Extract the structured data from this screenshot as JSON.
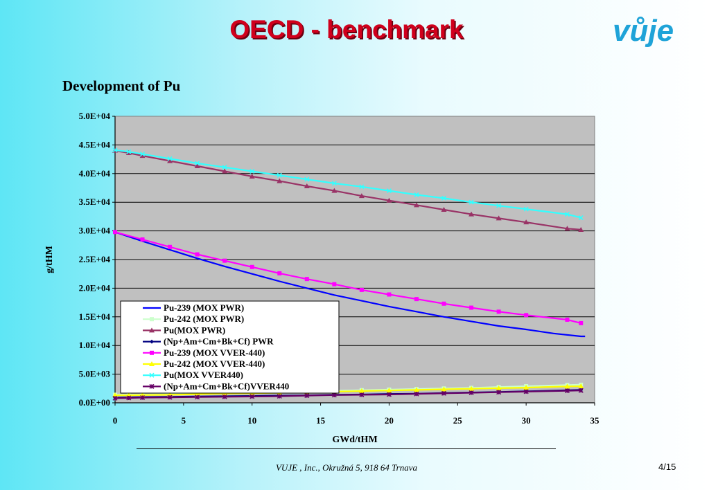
{
  "slide": {
    "title": "OECD - benchmark",
    "logo": "vůje",
    "footer": "VUJE , Inc., Okružná 5, 918 64 Trnava",
    "page": "4/15"
  },
  "chart_data": {
    "type": "line",
    "title": "Development of Pu",
    "xlabel": "GWd/tHM",
    "ylabel": "g/tHM",
    "xlim": [
      0,
      35
    ],
    "ylim": [
      0,
      50000
    ],
    "xticks": [
      "0",
      "5",
      "10",
      "15",
      "20",
      "25",
      "30",
      "35"
    ],
    "yticks": [
      "0.0E+00",
      "5.0E+03",
      "1.0E+04",
      "1.5E+04",
      "2.0E+04",
      "2.5E+04",
      "3.0E+04",
      "3.5E+04",
      "4.0E+04",
      "4.5E+04",
      "5.0E+04"
    ],
    "grid": "horizontal",
    "background": "#c0c0c0",
    "legend_position": "bottom-left",
    "series": [
      {
        "name": "Pu-239 (MOX PWR)",
        "color": "#0000ff",
        "marker": "none",
        "x": [
          0,
          2,
          4,
          6,
          8,
          10,
          12,
          14,
          16,
          18,
          20,
          22,
          24,
          26,
          28,
          30,
          32,
          34,
          34.3
        ],
        "y": [
          29800,
          28200,
          26700,
          25200,
          23800,
          22500,
          21200,
          20000,
          18800,
          17800,
          16800,
          15900,
          15000,
          14200,
          13400,
          12800,
          12100,
          11600,
          11600
        ]
      },
      {
        "name": "Pu-242 (MOX PWR)",
        "color": "#ccffcc",
        "marker": "square",
        "x": [
          0,
          1,
          2,
          4,
          6,
          8,
          10,
          12,
          14,
          16,
          18,
          20,
          22,
          24,
          26,
          28,
          30,
          33,
          34
        ],
        "y": [
          1400,
          1400,
          1450,
          1500,
          1600,
          1700,
          1800,
          1900,
          2000,
          2100,
          2200,
          2300,
          2400,
          2500,
          2600,
          2750,
          2900,
          3100,
          3150
        ]
      },
      {
        "name": "Pu(MOX PWR)",
        "color": "#993366",
        "marker": "triangle",
        "x": [
          0,
          1,
          2,
          4,
          6,
          8,
          10,
          12,
          14,
          16,
          18,
          20,
          22,
          24,
          26,
          28,
          30,
          33,
          34
        ],
        "y": [
          44000,
          43600,
          43100,
          42200,
          41300,
          40400,
          39500,
          38700,
          37800,
          37000,
          36100,
          35300,
          34500,
          33700,
          32900,
          32200,
          31500,
          30400,
          30200
        ]
      },
      {
        "name": "(Np+Am+Cm+Bk+Cf) PWR",
        "color": "#000080",
        "marker": "diamond",
        "x": [
          0,
          1,
          2,
          4,
          6,
          8,
          10,
          12,
          14,
          16,
          18,
          20,
          22,
          24,
          26,
          28,
          30,
          33,
          34
        ],
        "y": [
          900,
          950,
          1000,
          1050,
          1100,
          1150,
          1200,
          1250,
          1300,
          1400,
          1450,
          1550,
          1600,
          1700,
          1800,
          1900,
          2000,
          2200,
          2250
        ]
      },
      {
        "name": "Pu-239 (MOX VVER-440)",
        "color": "#ff00ff",
        "marker": "square",
        "x": [
          0,
          2,
          4,
          6,
          8,
          10,
          12,
          14,
          16,
          18,
          20,
          22,
          24,
          26,
          28,
          30,
          33,
          34
        ],
        "y": [
          29800,
          28500,
          27200,
          25900,
          24800,
          23700,
          22600,
          21600,
          20700,
          19700,
          18900,
          18100,
          17300,
          16600,
          15900,
          15300,
          14500,
          13900
        ]
      },
      {
        "name": "Pu-242 (MOX VVER-440)",
        "color": "#ffff00",
        "marker": "triangle",
        "x": [
          0,
          1,
          2,
          4,
          6,
          8,
          10,
          12,
          14,
          16,
          18,
          20,
          22,
          24,
          26,
          28,
          30,
          33,
          34
        ],
        "y": [
          1300,
          1300,
          1350,
          1400,
          1500,
          1600,
          1650,
          1750,
          1850,
          1950,
          2050,
          2150,
          2250,
          2350,
          2450,
          2550,
          2650,
          2850,
          2900
        ]
      },
      {
        "name": "Pu(MOX VVER440)",
        "color": "#33ffff",
        "marker": "x",
        "x": [
          0,
          1,
          2,
          4,
          6,
          8,
          10,
          12,
          14,
          16,
          18,
          20,
          22,
          24,
          26,
          28,
          30,
          33,
          34
        ],
        "y": [
          44100,
          43800,
          43400,
          42600,
          41800,
          41100,
          40400,
          39700,
          39000,
          38300,
          37700,
          37000,
          36300,
          35700,
          35000,
          34400,
          33800,
          32900,
          32300
        ]
      },
      {
        "name": "(Np+Am+Cm+Bk+Cf)VVER440",
        "color": "#660066",
        "marker": "star",
        "x": [
          0,
          1,
          2,
          4,
          6,
          8,
          10,
          12,
          14,
          16,
          18,
          20,
          22,
          24,
          26,
          28,
          30,
          33,
          34
        ],
        "y": [
          800,
          850,
          900,
          950,
          1000,
          1050,
          1100,
          1150,
          1250,
          1350,
          1400,
          1450,
          1550,
          1650,
          1750,
          1850,
          1950,
          2100,
          2150
        ]
      }
    ]
  }
}
